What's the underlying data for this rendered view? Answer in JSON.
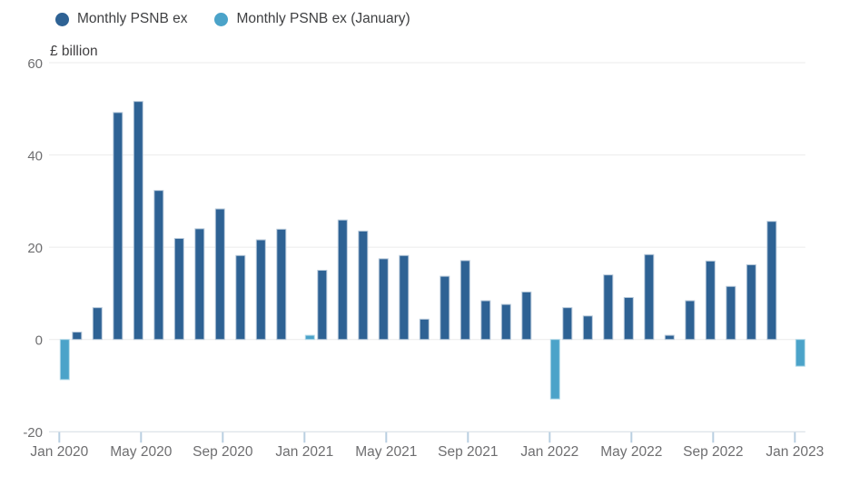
{
  "legend": {
    "items": [
      {
        "label": "Monthly PSNB ex",
        "color": "#2e6294",
        "border": "#b7c9da"
      },
      {
        "label": "Monthly PSNB ex (January)",
        "color": "#4ba3c9",
        "border": "#b0d8e8"
      }
    ]
  },
  "chart_data": {
    "type": "bar",
    "title": "",
    "ylabel": "£ billion",
    "xlabel": "",
    "ylim": [
      -20,
      60
    ],
    "yticks": [
      60,
      40,
      20,
      0,
      -20
    ],
    "grid": true,
    "legend_position": "top-left",
    "categories": [
      "Jan 2020",
      "Feb 2020",
      "Mar 2020",
      "Apr 2020",
      "May 2020",
      "Jun 2020",
      "Jul 2020",
      "Aug 2020",
      "Sep 2020",
      "Oct 2020",
      "Nov 2020",
      "Dec 2020",
      "Jan 2021",
      "Feb 2021",
      "Mar 2021",
      "Apr 2021",
      "May 2021",
      "Jun 2021",
      "Jul 2021",
      "Aug 2021",
      "Sep 2021",
      "Oct 2021",
      "Nov 2021",
      "Dec 2021",
      "Jan 2022",
      "Feb 2022",
      "Mar 2022",
      "Apr 2022",
      "May 2022",
      "Jun 2022",
      "Jul 2022",
      "Aug 2022",
      "Sep 2022",
      "Oct 2022",
      "Nov 2022",
      "Dec 2022",
      "Jan 2023"
    ],
    "xticks": [
      "Jan 2020",
      "May 2020",
      "Sep 2020",
      "Jan 2021",
      "May 2021",
      "Sep 2021",
      "Jan 2022",
      "May 2022",
      "Sep 2022",
      "Jan 2023"
    ],
    "series": [
      {
        "name": "Monthly PSNB ex",
        "color": "#2e6294",
        "border": "#b7c9da",
        "values": [
          null,
          1.6,
          6.9,
          49.2,
          51.6,
          32.3,
          21.9,
          24,
          28.3,
          18.2,
          21.6,
          23.9,
          null,
          15,
          25.9,
          23.5,
          17.5,
          18.2,
          4.4,
          13.7,
          17.1,
          8.4,
          7.6,
          10.3,
          null,
          6.9,
          5.1,
          14,
          9.1,
          18.4,
          0.9,
          8.4,
          17,
          11.5,
          16.2,
          25.6,
          null
        ]
      },
      {
        "name": "Monthly PSNB ex (January)",
        "color": "#4ba3c9",
        "border": "#b0d8e8",
        "values": [
          -8.7,
          null,
          null,
          null,
          null,
          null,
          null,
          null,
          null,
          null,
          null,
          null,
          0.9,
          null,
          null,
          null,
          null,
          null,
          null,
          null,
          null,
          null,
          null,
          null,
          -12.9,
          null,
          null,
          null,
          null,
          null,
          null,
          null,
          null,
          null,
          null,
          null,
          -5.8
        ]
      }
    ]
  },
  "colors": {
    "grid_line": "#ebebeb",
    "baseline": "#d3dbe2",
    "tick_mark": "#b9cfe1",
    "axis_text": "#6e6e70",
    "label_text": "#414042"
  }
}
